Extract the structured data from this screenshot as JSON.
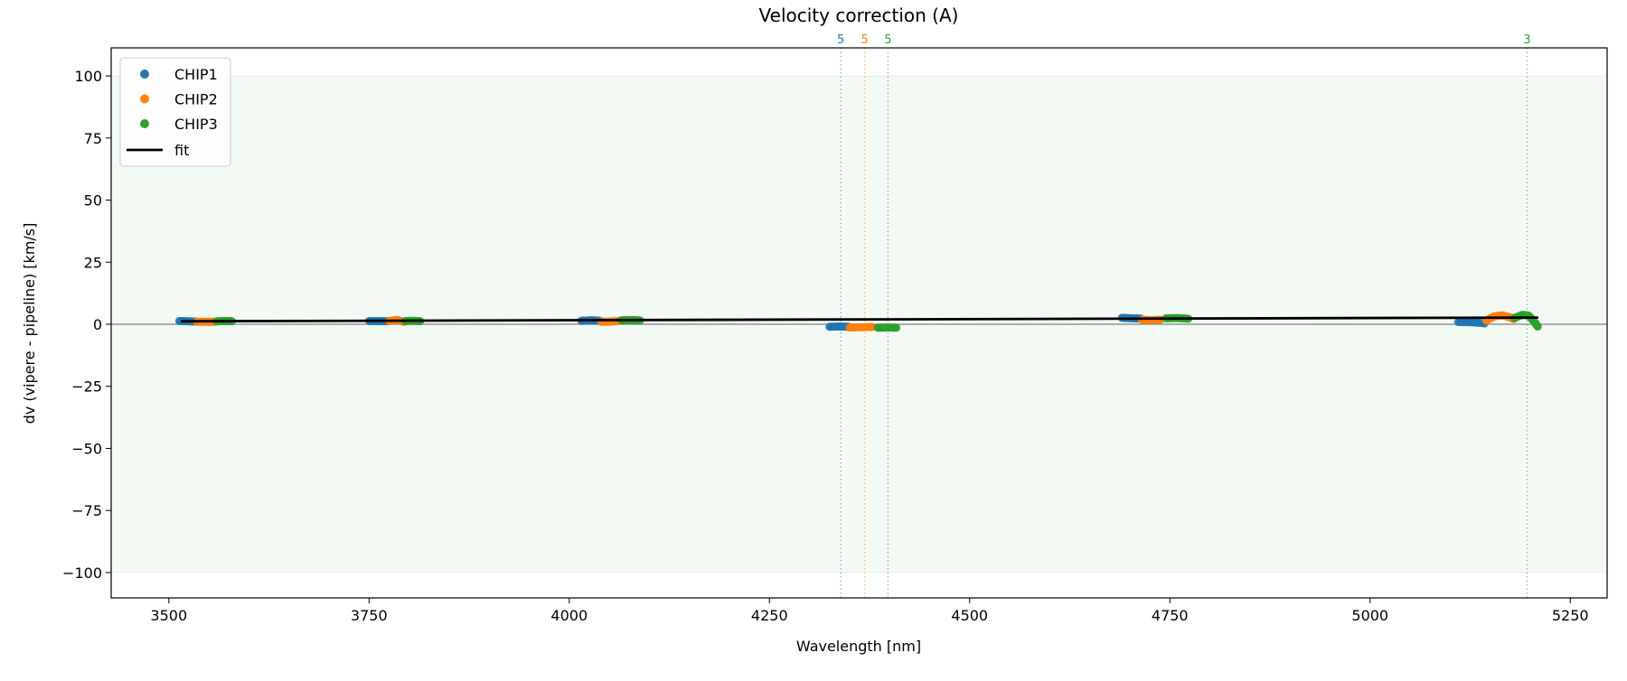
{
  "chart_data": {
    "type": "scatter",
    "title": "Velocity correction (A)",
    "xlabel": "Wavelength [nm]",
    "ylabel": "dv (vipere - pipeline) [km/s]",
    "xlim": [
      3428,
      5296
    ],
    "ylim": [
      -110.2,
      111.3
    ],
    "xticks": [
      3500,
      3750,
      4000,
      4250,
      4500,
      4750,
      5000,
      5250
    ],
    "yticks": [
      -100,
      -75,
      -50,
      -25,
      0,
      25,
      50,
      75,
      100
    ],
    "grid": false,
    "legend_placement": "upper-left",
    "band": {
      "y": [
        -100,
        100
      ],
      "color": "#2ca02c"
    },
    "zero_line": 0,
    "series": [
      {
        "name": "CHIP1",
        "color": "#1f77b4",
        "segments": [
          {
            "x": [
              3513,
              3524,
              3535
            ],
            "y": [
              1.3,
              1.2,
              1.1
            ]
          },
          {
            "x": [
              3750,
              3762,
              3775
            ],
            "y": [
              1.3,
              1.3,
              1.2
            ]
          },
          {
            "x": [
              4015,
              4028,
              4040
            ],
            "y": [
              1.4,
              1.6,
              1.4
            ]
          },
          {
            "x": [
              4325,
              4338,
              4350
            ],
            "y": [
              -1.0,
              -0.9,
              -1.0
            ]
          },
          {
            "x": [
              4690,
              4702,
              4715
            ],
            "y": [
              2.6,
              2.4,
              2.3
            ]
          },
          {
            "x": [
              5110,
              5128,
              5145
            ],
            "y": [
              0.9,
              0.8,
              0.3
            ]
          }
        ]
      },
      {
        "name": "CHIP2",
        "color": "#ff7f0e",
        "segments": [
          {
            "x": [
              3535,
              3548,
              3560
            ],
            "y": [
              1.0,
              1.0,
              1.0
            ]
          },
          {
            "x": [
              3775,
              3785,
              3795
            ],
            "y": [
              1.3,
              1.8,
              0.8
            ]
          },
          {
            "x": [
              4040,
              4052,
              4065
            ],
            "y": [
              1.0,
              1.1,
              1.4
            ]
          },
          {
            "x": [
              4350,
              4365,
              4380
            ],
            "y": [
              -1.3,
              -1.2,
              -1.1
            ]
          },
          {
            "x": [
              4715,
              4728,
              4740
            ],
            "y": [
              1.8,
              1.6,
              1.9
            ]
          },
          {
            "x": [
              5145,
              5155,
              5165,
              5175,
              5180
            ],
            "y": [
              1.5,
              3.2,
              3.6,
              2.8,
              2.0
            ]
          }
        ]
      },
      {
        "name": "CHIP3",
        "color": "#2ca02c",
        "segments": [
          {
            "x": [
              3560,
              3570,
              3580
            ],
            "y": [
              1.2,
              1.3,
              1.2
            ]
          },
          {
            "x": [
              3795,
              3805,
              3815
            ],
            "y": [
              1.3,
              1.4,
              1.2
            ]
          },
          {
            "x": [
              4065,
              4078,
              4090
            ],
            "y": [
              1.6,
              1.7,
              1.5
            ]
          },
          {
            "x": [
              4385,
              4398,
              4410
            ],
            "y": [
              -1.4,
              -1.3,
              -1.4
            ]
          },
          {
            "x": [
              4745,
              4760,
              4775
            ],
            "y": [
              2.4,
              2.5,
              2.2
            ]
          },
          {
            "x": [
              5180,
              5190,
              5198,
              5205,
              5210
            ],
            "y": [
              2.5,
              3.8,
              3.5,
              1.0,
              -1.2
            ]
          }
        ]
      }
    ],
    "fit": {
      "name": "fit",
      "color": "#000000",
      "x": [
        3515,
        5210
      ],
      "y": [
        1.2,
        2.7
      ]
    },
    "markers": [
      {
        "x": 4339,
        "label": "5",
        "color": "#1f77b4"
      },
      {
        "x": 4369,
        "label": "5",
        "color": "#ff7f0e"
      },
      {
        "x": 4398,
        "label": "5",
        "color": "#2ca02c"
      },
      {
        "x": 5196,
        "label": "3",
        "color": "#2ca02c"
      }
    ]
  }
}
